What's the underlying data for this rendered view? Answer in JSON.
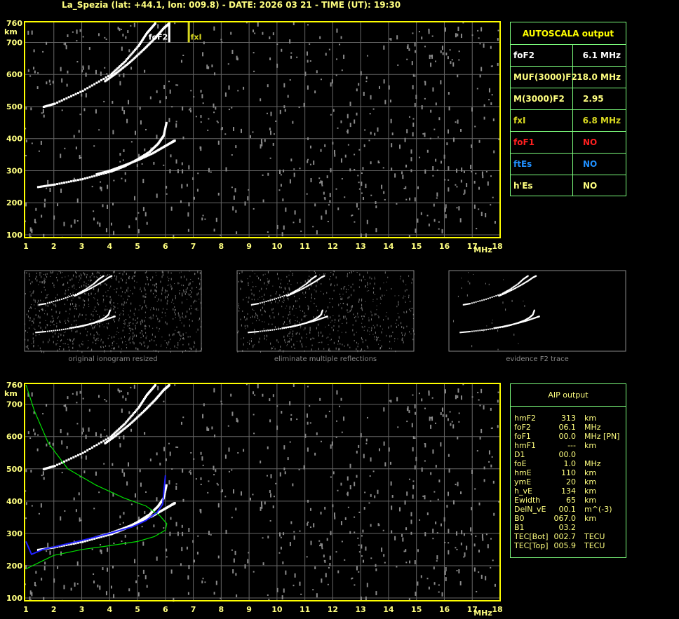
{
  "header": {
    "title": "La_Spezia (lat: +44.1, lon: 009.8) - DATE: 2026 03 21 - TIME (UT): 19:30"
  },
  "colors": {
    "frame": "#ffff00",
    "grid": "#666666",
    "tick_text": "#ffff80",
    "trace": "#ffffff",
    "noise": "#8a8a8a",
    "profile": "#00e000",
    "fitted_trace": "#2020ff",
    "table_border": "#7cfc7c",
    "fof1": "#ff2020",
    "ftes": "#2090ff",
    "fxi": "#d8d820"
  },
  "chart_data": [
    {
      "type": "scatter",
      "panel": "main ionogram",
      "xlabel": "MHz",
      "ylabel": "km",
      "xlim": [
        1,
        18
      ],
      "ylim": [
        100,
        760
      ],
      "xticks": [
        "1",
        "2",
        "3",
        "4",
        "5",
        "6",
        "7",
        "8",
        "9",
        "10",
        "11",
        "12",
        "13",
        "14",
        "15",
        "16",
        "17",
        "18"
      ],
      "yticks": [
        "760",
        "700",
        "600",
        "500",
        "400",
        "300",
        "200",
        "100"
      ],
      "grid": true,
      "markers": [
        {
          "label": "foF2",
          "x": 6.1
        },
        {
          "label": "fxI",
          "x": 6.8
        }
      ],
      "traces": [
        {
          "x": [
            1.4,
            2,
            3,
            4,
            4.5,
            5,
            5.4,
            5.7,
            5.9,
            6.0
          ],
          "y": [
            250,
            258,
            275,
            298,
            315,
            338,
            360,
            385,
            410,
            450
          ]
        },
        {
          "x": [
            3.5,
            4,
            4.5,
            5,
            5.5,
            5.9,
            6.2,
            6.3
          ],
          "y": [
            290,
            302,
            318,
            335,
            355,
            375,
            390,
            395
          ]
        },
        {
          "x": [
            1.6,
            2,
            3,
            4,
            4.5,
            5,
            5.3,
            5.6
          ],
          "y": [
            500,
            510,
            550,
            600,
            640,
            690,
            730,
            760
          ]
        },
        {
          "x": [
            3.8,
            4.2,
            4.7,
            5.2,
            5.6,
            5.9,
            6.1
          ],
          "y": [
            580,
            605,
            640,
            680,
            715,
            745,
            760
          ]
        }
      ]
    },
    {
      "type": "line",
      "panel": "AIP ionogram",
      "xlabel": "MHz",
      "ylabel": "km",
      "xlim": [
        1,
        18
      ],
      "ylim": [
        100,
        760
      ],
      "xticks": [
        "1",
        "2",
        "3",
        "4",
        "5",
        "6",
        "7",
        "8",
        "9",
        "10",
        "11",
        "12",
        "13",
        "14",
        "15",
        "16",
        "17",
        "18"
      ],
      "yticks": [
        "760",
        "700",
        "600",
        "500",
        "400",
        "300",
        "200",
        "100"
      ],
      "grid": true,
      "series": [
        {
          "x": [
            1.0,
            1.3,
            1.8,
            2.5,
            3.5,
            4.5,
            5.3,
            5.8,
            6.05,
            6.0,
            5.6,
            5.0,
            4.0,
            3.0,
            2.0,
            1.0
          ],
          "y": [
            760,
            680,
            580,
            500,
            450,
            410,
            385,
            355,
            330,
            310,
            290,
            275,
            262,
            250,
            232,
            190
          ]
        },
        {
          "x": [
            1.0,
            1.2,
            1.6,
            2.2,
            3,
            4,
            4.8,
            5.3,
            5.7,
            5.9,
            6.0
          ],
          "y": [
            275,
            235,
            250,
            262,
            278,
            300,
            320,
            340,
            365,
            390,
            480
          ]
        }
      ]
    }
  ],
  "thumbnails": [
    {
      "caption": "original ionogram resized"
    },
    {
      "caption": "eliminate multiple reflections"
    },
    {
      "caption": "evidence F2 trace"
    }
  ],
  "autoscala": {
    "title": "AUTOSCALA output",
    "rows": [
      {
        "key": "foF2",
        "value": "6.1 MHz"
      },
      {
        "key": "MUF(3000)F2",
        "value": "18.0 MHz"
      },
      {
        "key": "M(3000)F2",
        "value": "2.95"
      },
      {
        "key": "fxI",
        "value": "6.8 MHz"
      },
      {
        "key": "foF1",
        "value": "NO"
      },
      {
        "key": "ftEs",
        "value": "NO"
      },
      {
        "key": "h'Es",
        "value": "NO"
      }
    ]
  },
  "aip": {
    "title": "AIP output",
    "rows": [
      {
        "k": "hmF2",
        "v": "313",
        "u": "km"
      },
      {
        "k": "foF2",
        "v": "06.1",
        "u": "MHz"
      },
      {
        "k": "foF1",
        "v": "00.0",
        "u": "MHz    [PN]"
      },
      {
        "k": "hmF1",
        "v": "---",
        "u": "km"
      },
      {
        "k": "D1",
        "v": "00.0",
        "u": ""
      },
      {
        "k": "foE",
        "v": "1.0",
        "u": "MHz"
      },
      {
        "k": "hmE",
        "v": "110",
        "u": "km"
      },
      {
        "k": "ymE",
        "v": "20",
        "u": "km"
      },
      {
        "k": "h_vE",
        "v": "134",
        "u": "km"
      },
      {
        "k": "Ewidth",
        "v": "65",
        "u": "km"
      },
      {
        "k": "DelN_vE",
        "v": "00.1",
        "u": "m^(-3)"
      },
      {
        "k": "B0",
        "v": "067.0",
        "u": "km"
      },
      {
        "k": "B1",
        "v": "03.2",
        "u": ""
      },
      {
        "k": "TEC[Bot]",
        "v": "002.7",
        "u": "TECU"
      },
      {
        "k": "TEC[Top]",
        "v": "005.9",
        "u": "TECU"
      }
    ]
  }
}
